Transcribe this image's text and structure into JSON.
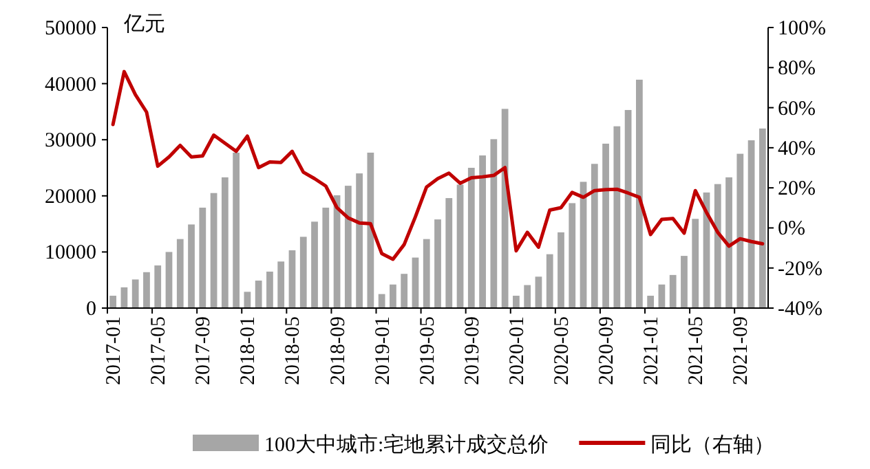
{
  "chart_data": {
    "type": "bar",
    "ylabel": "亿元",
    "categories": [
      "2017-01",
      null,
      null,
      null,
      "2017-05",
      null,
      null,
      null,
      "2017-09",
      null,
      null,
      null,
      "2018-01",
      null,
      null,
      null,
      "2018-05",
      null,
      null,
      null,
      "2018-09",
      null,
      null,
      null,
      "2019-01",
      null,
      null,
      null,
      "2019-05",
      null,
      null,
      null,
      "2019-09",
      null,
      null,
      null,
      "2020-01",
      null,
      null,
      null,
      "2020-05",
      null,
      null,
      null,
      "2020-09",
      null,
      null,
      null,
      "2021-01",
      null,
      null,
      null,
      "2021-05",
      null,
      null,
      null,
      "2021-09",
      null,
      null
    ],
    "series": [
      {
        "name": "100大中城市:宅地累计成交总价",
        "color": "#a6a6a6",
        "values": [
          2200,
          3700,
          5100,
          6400,
          7600,
          10000,
          12300,
          14900,
          17900,
          20500,
          23300,
          27700,
          2900,
          4900,
          6500,
          8300,
          10300,
          12700,
          15400,
          17900,
          20100,
          21800,
          24000,
          27700,
          2500,
          4200,
          6100,
          9000,
          12300,
          15800,
          19600,
          22000,
          25000,
          27200,
          30100,
          35500,
          2200,
          4100,
          5600,
          9600,
          13500,
          18700,
          22500,
          25700,
          29300,
          32400,
          35300,
          40700,
          2200,
          4200,
          5900,
          9300,
          15900,
          20600,
          22100,
          23300,
          27500,
          29900,
          32000
        ]
      },
      {
        "name": "同比（右轴）",
        "type": "line",
        "axis": "y2",
        "color": "#c00000",
        "values": [
          51.6,
          78,
          66.5,
          57.8,
          30.8,
          35.4,
          41.2,
          35.4,
          35.9,
          46.3,
          42.3,
          38.2,
          45.8,
          30.1,
          32.9,
          32.7,
          38.2,
          27.8,
          24.6,
          20.9,
          10.1,
          5.0,
          2.5,
          2.1,
          -12.8,
          -15.6,
          -8.3,
          5.5,
          20.4,
          24.6,
          27.3,
          22.3,
          25.0,
          25.5,
          26.2,
          30.1,
          -11.4,
          -2.2,
          -9.6,
          8.9,
          10.1,
          17.7,
          15.3,
          18.6,
          19.1,
          19.3,
          17.4,
          15.3,
          -3.3,
          4.3,
          4.7,
          -2.6,
          18.6,
          7.7,
          -2.2,
          -9.1,
          -5.4,
          -6.8,
          -7.9
        ]
      }
    ],
    "ylim": [
      0,
      50000
    ],
    "yticks": [
      0,
      10000,
      20000,
      30000,
      40000,
      50000
    ],
    "y2lim": [
      -40,
      100
    ],
    "y2ticks": [
      {
        "value": -40,
        "label": "-40%"
      },
      {
        "value": -20,
        "label": "-20%"
      },
      {
        "value": 0,
        "label": "0%"
      },
      {
        "value": 20,
        "label": "20%"
      },
      {
        "value": 40,
        "label": "40%"
      },
      {
        "value": 60,
        "label": "60%"
      },
      {
        "value": 80,
        "label": "80%"
      },
      {
        "value": 100,
        "label": "100%"
      }
    ],
    "legend": "bottom",
    "grid": false
  }
}
